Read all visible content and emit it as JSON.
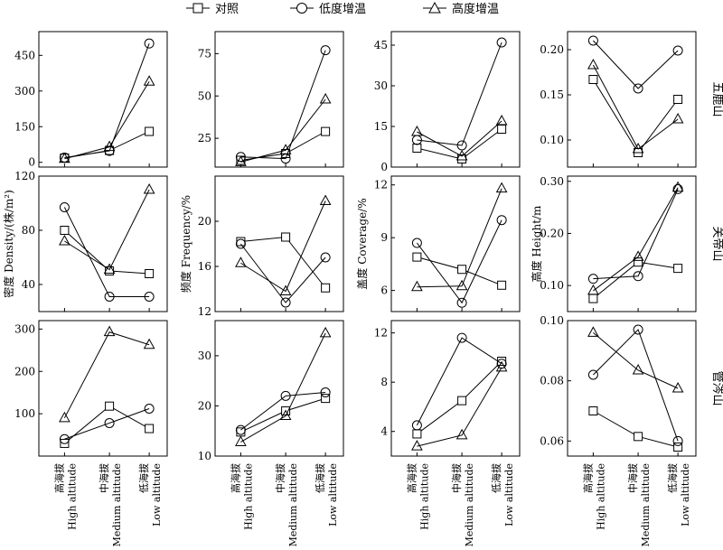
{
  "legend": {
    "position": "top-center",
    "items": [
      {
        "label": "对照",
        "marker": "square"
      },
      {
        "label": "低度增温",
        "marker": "circle"
      },
      {
        "label": "高度增温",
        "marker": "triangle"
      }
    ]
  },
  "categories": [
    {
      "zh": "高海拔",
      "en": "High altitude"
    },
    {
      "zh": "中海拔",
      "en": "Medium altitude"
    },
    {
      "zh": "低海拔",
      "en": "Low altitude"
    }
  ],
  "columns": [
    {
      "ylabel": "密度 Density/(株/m²)"
    },
    {
      "ylabel": "频度 Frequency/%"
    },
    {
      "ylabel": "盖度 Coverage/%"
    },
    {
      "ylabel": "高度 Height/m"
    }
  ],
  "rows": [
    {
      "label": "五鹿山"
    },
    {
      "label": "关帝山"
    },
    {
      "label": "管涔山"
    }
  ],
  "chart_data": [
    {
      "type": "line",
      "row": 0,
      "col": 0,
      "ylim": [
        -20,
        550
      ],
      "yticks": [
        0,
        150,
        300,
        450
      ],
      "series": [
        {
          "name": "对照",
          "values": [
            18,
            50,
            130
          ]
        },
        {
          "name": "低度增温",
          "values": [
            20,
            48,
            500
          ]
        },
        {
          "name": "高度增温",
          "values": [
            15,
            65,
            340
          ]
        }
      ]
    },
    {
      "type": "line",
      "row": 0,
      "col": 1,
      "ylim": [
        8,
        88
      ],
      "yticks": [
        25,
        50,
        75
      ],
      "series": [
        {
          "name": "对照",
          "values": [
            12,
            16,
            29
          ]
        },
        {
          "name": "低度增温",
          "values": [
            14,
            13,
            77
          ]
        },
        {
          "name": "高度增温",
          "values": [
            11,
            18,
            48
          ]
        }
      ]
    },
    {
      "type": "line",
      "row": 0,
      "col": 2,
      "ylim": [
        0,
        50
      ],
      "yticks": [
        0,
        15,
        30,
        45
      ],
      "series": [
        {
          "name": "对照",
          "values": [
            7,
            3,
            14
          ]
        },
        {
          "name": "低度增温",
          "values": [
            10,
            8,
            46
          ]
        },
        {
          "name": "高度增温",
          "values": [
            13,
            4,
            17
          ]
        }
      ]
    },
    {
      "type": "line",
      "row": 0,
      "col": 3,
      "ylim": [
        0.07,
        0.22
      ],
      "yticks": [
        0.1,
        0.15,
        0.2
      ],
      "series": [
        {
          "name": "对照",
          "values": [
            0.167,
            0.086,
            0.145
          ]
        },
        {
          "name": "低度增温",
          "values": [
            0.21,
            0.157,
            0.199
          ]
        },
        {
          "name": "高度增温",
          "values": [
            0.183,
            0.09,
            0.123
          ]
        }
      ]
    },
    {
      "type": "line",
      "row": 1,
      "col": 0,
      "ylim": [
        20,
        120
      ],
      "yticks": [
        40,
        80,
        120
      ],
      "series": [
        {
          "name": "对照",
          "values": [
            80,
            50,
            48
          ]
        },
        {
          "name": "低度增温",
          "values": [
            97,
            31,
            31
          ]
        },
        {
          "name": "高度增温",
          "values": [
            72,
            51,
            110
          ]
        }
      ]
    },
    {
      "type": "line",
      "row": 1,
      "col": 1,
      "ylim": [
        12,
        24
      ],
      "yticks": [
        12,
        16,
        20
      ],
      "series": [
        {
          "name": "对照",
          "values": [
            18.2,
            18.6,
            14.1
          ]
        },
        {
          "name": "低度增温",
          "values": [
            18,
            12.8,
            16.8
          ]
        },
        {
          "name": "高度增温",
          "values": [
            16.3,
            13.8,
            21.8
          ]
        }
      ]
    },
    {
      "type": "line",
      "row": 1,
      "col": 2,
      "ylim": [
        4.8,
        12.5
      ],
      "yticks": [
        6,
        9,
        12
      ],
      "series": [
        {
          "name": "对照",
          "values": [
            7.9,
            7.2,
            6.3
          ]
        },
        {
          "name": "低度增温",
          "values": [
            8.7,
            5.3,
            10
          ]
        },
        {
          "name": "高度增温",
          "values": [
            6.2,
            6.25,
            11.8
          ]
        }
      ]
    },
    {
      "type": "line",
      "row": 1,
      "col": 3,
      "ylim": [
        0.05,
        0.31
      ],
      "yticks": [
        0.1,
        0.2,
        0.3
      ],
      "series": [
        {
          "name": "对照",
          "values": [
            0.075,
            0.145,
            0.133
          ]
        },
        {
          "name": "低度增温",
          "values": [
            0.113,
            0.118,
            0.285
          ]
        },
        {
          "name": "高度增温",
          "values": [
            0.09,
            0.155,
            0.288
          ]
        }
      ]
    },
    {
      "type": "line",
      "row": 2,
      "col": 0,
      "ylim": [
        0,
        320
      ],
      "yticks": [
        100,
        200,
        300
      ],
      "series": [
        {
          "name": "对照",
          "values": [
            30,
            118,
            65
          ]
        },
        {
          "name": "低度增温",
          "values": [
            40,
            78,
            112
          ]
        },
        {
          "name": "高度增温",
          "values": [
            90,
            293,
            263
          ]
        }
      ]
    },
    {
      "type": "line",
      "row": 2,
      "col": 1,
      "ylim": [
        10,
        37
      ],
      "yticks": [
        10,
        20,
        30
      ],
      "series": [
        {
          "name": "对照",
          "values": [
            14.8,
            19,
            21.5
          ]
        },
        {
          "name": "低度增温",
          "values": [
            15.2,
            22,
            22.7
          ]
        },
        {
          "name": "高度增温",
          "values": [
            12.8,
            18,
            34.5
          ]
        }
      ]
    },
    {
      "type": "line",
      "row": 2,
      "col": 2,
      "ylim": [
        2,
        13
      ],
      "yticks": [
        4,
        8,
        12
      ],
      "series": [
        {
          "name": "对照",
          "values": [
            3.8,
            6.5,
            9.7
          ]
        },
        {
          "name": "低度增温",
          "values": [
            4.5,
            11.6,
            9.5
          ]
        },
        {
          "name": "高度增温",
          "values": [
            2.8,
            3.7,
            9.2
          ]
        }
      ]
    },
    {
      "type": "line",
      "row": 2,
      "col": 3,
      "ylim": [
        0.055,
        0.1
      ],
      "yticks": [
        0.06,
        0.08,
        0.1
      ],
      "series": [
        {
          "name": "对照",
          "values": [
            0.07,
            0.0615,
            0.058
          ]
        },
        {
          "name": "低度增温",
          "values": [
            0.082,
            0.097,
            0.06
          ]
        },
        {
          "name": "高度增温",
          "values": [
            0.096,
            0.0835,
            0.0775
          ]
        }
      ]
    }
  ]
}
